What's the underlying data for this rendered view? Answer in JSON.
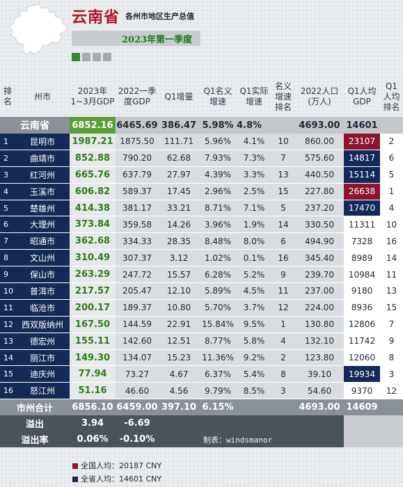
{
  "header": {
    "title": "云南省",
    "subtitle": "各州市地区生产总值",
    "period": "2023年第一季度"
  },
  "columns": {
    "rank": "排\n名",
    "city": "州市",
    "gdp2023": "2023年\n1~3月GDP",
    "gdp2022": "2022一季\n度GDP",
    "growth": "Q1增量",
    "nominal": "Q1名义\n增速",
    "real": "Q1实际\n增速",
    "nominal_rank": "名义\n增速\n排名",
    "pop": "2022人口\n(万人)",
    "per_capita": "Q1人均\nGDP",
    "pc_rank": "Q1\n人均\n排名"
  },
  "province": {
    "name": "云南省",
    "gdp2023": "6852.16",
    "gdp2022": "6465.69",
    "growth": "386.47",
    "nominal": "5.98%",
    "real": "4.8%",
    "pop": "4693.00",
    "per_capita": "14601"
  },
  "rows": [
    {
      "rank": "1",
      "city": "昆明市",
      "gdp2023": "1987.21",
      "gdp2022": "1875.50",
      "growth": "111.71",
      "nominal": "5.96%",
      "real": "4.1%",
      "nominal_rank": "10",
      "pop": "860.00",
      "per_capita": "23107",
      "pc_rank": "2",
      "pc_color": "hi"
    },
    {
      "rank": "2",
      "city": "曲靖市",
      "gdp2023": "852.88",
      "gdp2022": "790.20",
      "growth": "62.68",
      "nominal": "7.93%",
      "real": "7.3%",
      "nominal_rank": "7",
      "pop": "575.60",
      "per_capita": "14817",
      "pc_rank": "6",
      "pc_color": "nat"
    },
    {
      "rank": "3",
      "city": "红河州",
      "gdp2023": "665.76",
      "gdp2022": "637.79",
      "growth": "27.97",
      "nominal": "4.39%",
      "real": "3.3%",
      "nominal_rank": "13",
      "pop": "440.50",
      "per_capita": "15114",
      "pc_rank": "5",
      "pc_color": "nat"
    },
    {
      "rank": "4",
      "city": "玉溪市",
      "gdp2023": "606.82",
      "gdp2022": "589.37",
      "growth": "17.45",
      "nominal": "2.96%",
      "real": "2.5%",
      "nominal_rank": "15",
      "pop": "227.80",
      "per_capita": "26638",
      "pc_rank": "1",
      "pc_color": "hi"
    },
    {
      "rank": "5",
      "city": "楚雄州",
      "gdp2023": "414.38",
      "gdp2022": "381.17",
      "growth": "33.21",
      "nominal": "8.71%",
      "real": "7.1%",
      "nominal_rank": "5",
      "pop": "237.20",
      "per_capita": "17470",
      "pc_rank": "4",
      "pc_color": "nat"
    },
    {
      "rank": "6",
      "city": "大理州",
      "gdp2023": "373.84",
      "gdp2022": "359.58",
      "growth": "14.26",
      "nominal": "3.96%",
      "real": "1.9%",
      "nominal_rank": "14",
      "pop": "330.50",
      "per_capita": "11311",
      "pc_rank": "10",
      "pc_color": "lo"
    },
    {
      "rank": "7",
      "city": "昭通市",
      "gdp2023": "362.68",
      "gdp2022": "334.33",
      "growth": "28.35",
      "nominal": "8.48%",
      "real": "8.0%",
      "nominal_rank": "6",
      "pop": "494.90",
      "per_capita": "7328",
      "pc_rank": "16",
      "pc_color": "lo"
    },
    {
      "rank": "8",
      "city": "文山州",
      "gdp2023": "310.49",
      "gdp2022": "307.37",
      "growth": "3.12",
      "nominal": "1.02%",
      "real": "0.1%",
      "nominal_rank": "16",
      "pop": "345.40",
      "per_capita": "8989",
      "pc_rank": "14",
      "pc_color": "lo"
    },
    {
      "rank": "9",
      "city": "保山市",
      "gdp2023": "263.29",
      "gdp2022": "247.72",
      "growth": "15.57",
      "nominal": "6.28%",
      "real": "5.2%",
      "nominal_rank": "9",
      "pop": "239.70",
      "per_capita": "10984",
      "pc_rank": "11",
      "pc_color": "lo"
    },
    {
      "rank": "10",
      "city": "普洱市",
      "gdp2023": "217.57",
      "gdp2022": "205.47",
      "growth": "12.10",
      "nominal": "5.89%",
      "real": "4.5%",
      "nominal_rank": "11",
      "pop": "237.00",
      "per_capita": "9180",
      "pc_rank": "13",
      "pc_color": "lo"
    },
    {
      "rank": "11",
      "city": "临沧市",
      "gdp2023": "200.17",
      "gdp2022": "189.37",
      "growth": "10.80",
      "nominal": "5.70%",
      "real": "3.7%",
      "nominal_rank": "12",
      "pop": "224.00",
      "per_capita": "8936",
      "pc_rank": "15",
      "pc_color": "lo"
    },
    {
      "rank": "12",
      "city": "西双版纳州",
      "gdp2023": "167.50",
      "gdp2022": "144.59",
      "growth": "22.91",
      "nominal": "15.84%",
      "real": "9.5%",
      "nominal_rank": "1",
      "pop": "130.80",
      "per_capita": "12806",
      "pc_rank": "7",
      "pc_color": "lo"
    },
    {
      "rank": "13",
      "city": "德宏州",
      "gdp2023": "155.11",
      "gdp2022": "142.60",
      "growth": "12.51",
      "nominal": "8.77%",
      "real": "5.8%",
      "nominal_rank": "4",
      "pop": "132.10",
      "per_capita": "11742",
      "pc_rank": "9",
      "pc_color": "lo"
    },
    {
      "rank": "14",
      "city": "丽江市",
      "gdp2023": "149.30",
      "gdp2022": "134.07",
      "growth": "15.23",
      "nominal": "11.36%",
      "real": "9.2%",
      "nominal_rank": "2",
      "pop": "123.80",
      "per_capita": "12060",
      "pc_rank": "8",
      "pc_color": "lo"
    },
    {
      "rank": "15",
      "city": "迪庆州",
      "gdp2023": "77.94",
      "gdp2022": "73.27",
      "growth": "4.67",
      "nominal": "6.37%",
      "real": "5.4%",
      "nominal_rank": "8",
      "pop": "39.10",
      "per_capita": "19934",
      "pc_rank": "3",
      "pc_color": "nat"
    },
    {
      "rank": "16",
      "city": "怒江州",
      "gdp2023": "51.16",
      "gdp2022": "46.60",
      "growth": "4.56",
      "nominal": "9.79%",
      "real": "8.5%",
      "nominal_rank": "3",
      "pop": "54.60",
      "per_capita": "9370",
      "pc_rank": "12",
      "pc_color": "lo"
    }
  ],
  "total": {
    "label": "市州合计",
    "gdp2023": "6856.10",
    "gdp2022": "6459.00",
    "growth": "397.10",
    "nominal": "6.15%",
    "pop": "4693.00",
    "per_capita": "14609"
  },
  "overflow": {
    "label": "溢出",
    "gdp2023": "3.94",
    "gdp2022": "-6.69"
  },
  "overflow_rate": {
    "label": "溢出率",
    "gdp2023": "0.06%",
    "gdp2022": "-0.10%",
    "credit": "制表：windsmanor"
  },
  "legend": {
    "national": "全国人均：20187 CNY",
    "provincial": "全省人均：14601 CNY"
  },
  "colors": {
    "above_national": "#8a1530",
    "above_provincial": "#132a57",
    "gdp_green": "#2e7d16"
  }
}
